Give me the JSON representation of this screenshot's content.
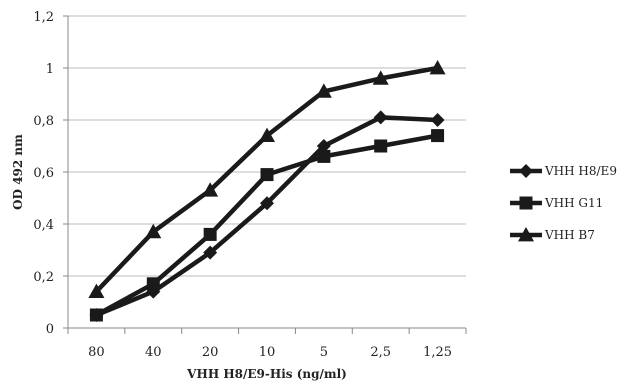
{
  "chart_data": {
    "type": "line",
    "title": "",
    "xlabel": "VHH H8/E9-His (ng/ml)",
    "ylabel": "OD 492 nm",
    "categories": [
      "80",
      "40",
      "20",
      "10",
      "5",
      "2,5",
      "1,25"
    ],
    "ylim": [
      0,
      1.2
    ],
    "yticks": [
      0,
      0.2,
      0.4,
      0.6,
      0.8,
      1.0,
      1.2
    ],
    "ytick_labels": [
      "0",
      "0,2",
      "0,4",
      "0,6",
      "0,8",
      "1",
      "1,2"
    ],
    "grid": "horizontal",
    "legend_position": "right",
    "series": [
      {
        "name": "VHH H8/E9",
        "marker": "diamond",
        "color": "#1a1a1a",
        "values": [
          0.05,
          0.14,
          0.29,
          0.48,
          0.7,
          0.81,
          0.8
        ]
      },
      {
        "name": "VHH G11",
        "marker": "square",
        "color": "#1a1a1a",
        "values": [
          0.05,
          0.17,
          0.36,
          0.59,
          0.66,
          0.7,
          0.74
        ]
      },
      {
        "name": "VHH B7",
        "marker": "triangle",
        "color": "#1a1a1a",
        "values": [
          0.14,
          0.37,
          0.53,
          0.74,
          0.91,
          0.96,
          1.0
        ]
      }
    ]
  }
}
